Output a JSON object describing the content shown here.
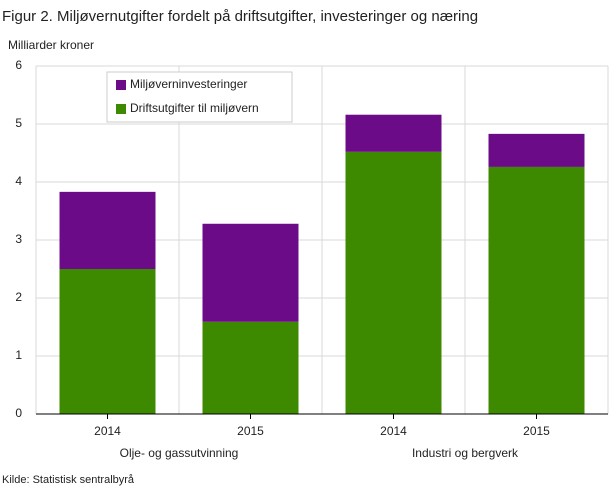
{
  "chart_data": {
    "type": "stacked_bar",
    "title": "Figur 2. Miljøvernutgifter fordelt på driftsutgifter, investeringer og næring",
    "y_axis_label": "Milliarder  kroner",
    "source": "Kilde: Statistisk sentralbyrå",
    "categories": [
      "2014",
      "2015",
      "2014",
      "2015"
    ],
    "groups": [
      "Olje- og gassutvinning",
      "Industri og bergverk"
    ],
    "series": [
      {
        "name": "Driftsutgifter til miljøvern",
        "color": "#3d8a00",
        "values": [
          2.5,
          1.59,
          4.52,
          4.26
        ]
      },
      {
        "name": "Miljøverninvesteringer",
        "color": "#6c0b87",
        "values": [
          1.33,
          1.69,
          0.64,
          0.57
        ]
      }
    ],
    "ylim": [
      0,
      6
    ],
    "yticks": [
      0,
      1,
      2,
      3,
      4,
      5,
      6
    ],
    "grid": true
  }
}
